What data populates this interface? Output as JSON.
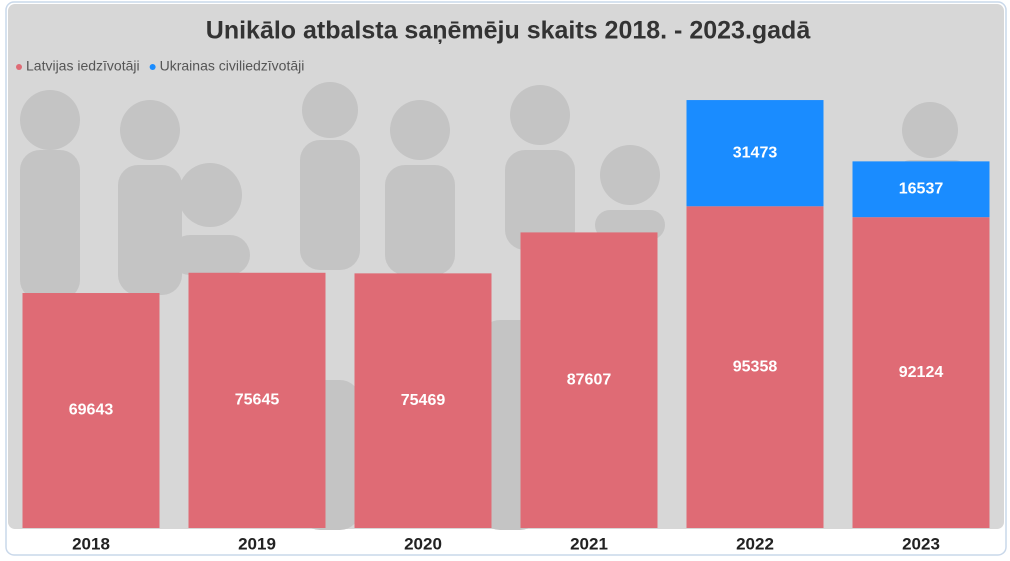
{
  "chart_data": {
    "type": "stacked_bar",
    "title": "Unikālo atbalsta saņēmēju skaits 2018. - 2023.gadā",
    "categories": [
      "2018",
      "2019",
      "2020",
      "2021",
      "2022",
      "2023"
    ],
    "series": [
      {
        "name": "Latvijas iedzīvotāji",
        "color": "#df6b75",
        "values": [
          69643,
          75645,
          75469,
          87607,
          95358,
          92124
        ]
      },
      {
        "name": "Ukrainas civiliedzīvotāji",
        "color": "#1a8cff",
        "values": [
          null,
          null,
          null,
          null,
          31473,
          16537
        ]
      }
    ],
    "ylim": [
      0,
      131000
    ],
    "legend": "top-left"
  }
}
